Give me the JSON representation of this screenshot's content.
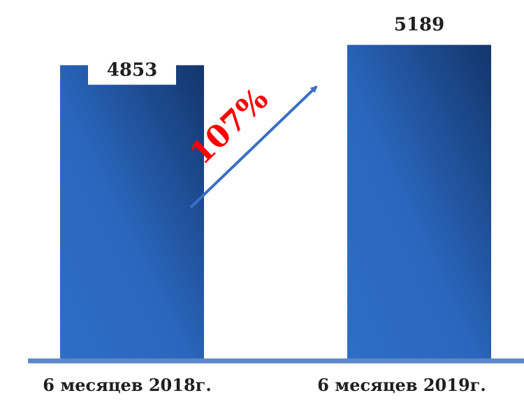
{
  "chart_data": {
    "type": "bar",
    "categories": [
      "6 месяцев 2018г.",
      "6 месяцев 2019г."
    ],
    "values": [
      4853,
      5189
    ],
    "ylim": [
      0,
      5500
    ],
    "grid": false,
    "annotations": [
      {
        "text": "107%",
        "color": "#ff0000"
      }
    ]
  },
  "colors": {
    "bar_light": "#2e6ec7",
    "bar_dark": "#13356b",
    "axis": "#5b88c8",
    "arrow": "#3a6fc4",
    "growth": "#ff0000"
  }
}
